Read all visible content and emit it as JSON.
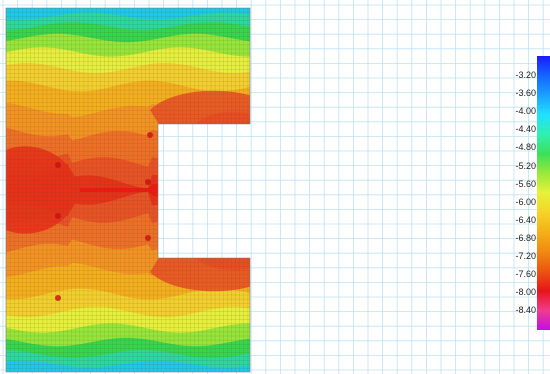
{
  "legend": {
    "ticks": [
      "-3.20",
      "-3.60",
      "-4.00",
      "-4.40",
      "-4.80",
      "-5.20",
      "-5.60",
      "-6.00",
      "-6.40",
      "-6.80",
      "-7.20",
      "-7.60",
      "-8.00",
      "-8.40"
    ],
    "colors": [
      "#1a1aff",
      "#1565ff",
      "#1aa0ff",
      "#20e0ff",
      "#30f0b0",
      "#3ce05a",
      "#9ae83a",
      "#e6f23a",
      "#f5d428",
      "#f4b018",
      "#f28a12",
      "#ec5410",
      "#e8141a",
      "#f03c8c",
      "#c40ee6"
    ]
  },
  "contour": {
    "band_colors": [
      "#1ec8e8",
      "#2ad8a0",
      "#36d54e",
      "#96e63a",
      "#e6ef3c",
      "#f3cf2e",
      "#f4af1f",
      "#f39324",
      "#ee7026",
      "#e95224",
      "#e83218",
      "#ed1a12"
    ]
  },
  "colors": {
    "grid": "#bfe2f2",
    "background": "#ffffff"
  }
}
